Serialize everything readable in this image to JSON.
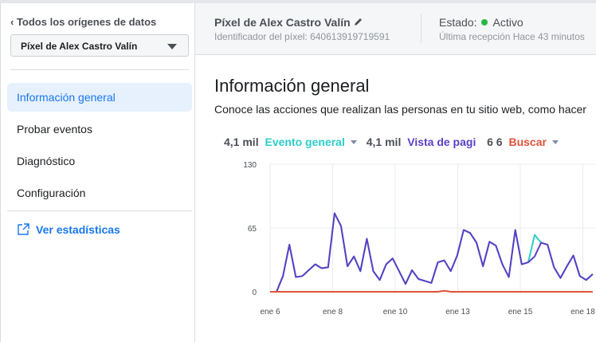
{
  "sidebar": {
    "back_label": "Todos los orígenes de datos",
    "selected_pixel": "Píxel de Alex Castro Valín",
    "items": [
      {
        "label": "Información general",
        "active": true
      },
      {
        "label": "Probar eventos"
      },
      {
        "label": "Diagnóstico"
      },
      {
        "label": "Configuración"
      }
    ],
    "stats_link": "Ver estadísticas"
  },
  "header": {
    "pixel_name": "Píxel de Alex Castro Valín",
    "pixel_id": "Identificador del píxel: 640613919719591",
    "status_label": "Estado:",
    "status_value": "Activo",
    "status_color": "#2cb742",
    "last_received": "Última recepción Hace 43 minutos"
  },
  "main": {
    "title": "Información general",
    "description": "Conoce las acciones que realizan las personas en tu sitio web, como hacer"
  },
  "legend": [
    {
      "count": "4,1 mil",
      "label": "Evento general",
      "color": "#2ccdc8"
    },
    {
      "count": "4,1 mil",
      "label": "Vista de pagi",
      "color": "#5b3fc4"
    },
    {
      "count": "6 6",
      "label": "Buscar",
      "color": "#e0523a"
    }
  ],
  "chart_data": {
    "type": "line",
    "ylim": [
      0,
      130
    ],
    "yticks": [
      "0",
      "65",
      "130"
    ],
    "xticks": [
      "ene 6",
      "ene 8",
      "ene 10",
      "ene 13",
      "ene 15",
      "ene 18"
    ],
    "grid": true,
    "series": [
      {
        "name": "Evento general",
        "color": "#2ccdc8",
        "values": [
          0,
          16,
          48,
          15,
          16,
          22,
          28,
          24,
          25,
          80,
          67,
          26,
          36,
          21,
          54,
          21,
          12,
          28,
          34,
          21,
          8,
          22,
          13,
          11,
          9,
          30,
          32,
          21,
          37,
          63,
          60,
          50,
          26,
          51,
          47,
          28,
          15,
          63,
          28,
          30,
          58,
          50,
          48,
          25,
          14,
          26,
          37,
          16,
          12,
          18
        ]
      },
      {
        "name": "Vista de pagi",
        "color": "#5b3fc4",
        "values": [
          0,
          16,
          48,
          15,
          16,
          22,
          28,
          24,
          25,
          80,
          67,
          26,
          36,
          21,
          54,
          21,
          12,
          28,
          34,
          21,
          8,
          22,
          13,
          11,
          9,
          30,
          32,
          21,
          37,
          63,
          60,
          50,
          26,
          51,
          47,
          28,
          15,
          63,
          28,
          30,
          36,
          50,
          48,
          25,
          14,
          26,
          37,
          16,
          12,
          18
        ]
      },
      {
        "name": "Buscar",
        "color": "#e0523a",
        "values": [
          0,
          0,
          0,
          0,
          0,
          0,
          0,
          0,
          0,
          0,
          0,
          0,
          0,
          0,
          0,
          0,
          0,
          0,
          0,
          0,
          0,
          0,
          0,
          0,
          0,
          0,
          1,
          0,
          0,
          0,
          0,
          0,
          0,
          0,
          0,
          0,
          0,
          0,
          0,
          0,
          0,
          0,
          0,
          0,
          0,
          0,
          0,
          0,
          0,
          0
        ]
      }
    ]
  }
}
